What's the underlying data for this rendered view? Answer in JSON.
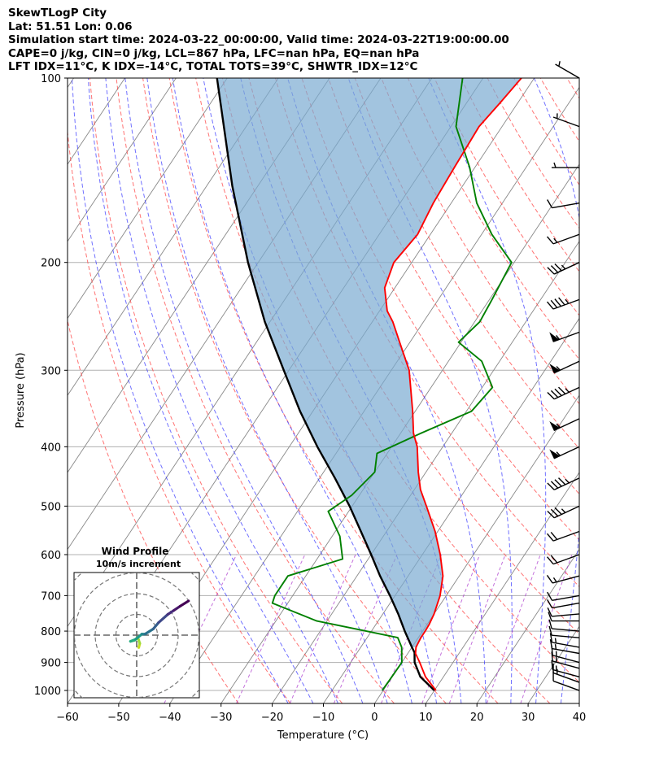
{
  "header": {
    "line1": "SkewTLogP City",
    "line2": "Lat: 51.51   Lon: 0.06",
    "line3": "Simulation start time: 2024-03-22_00:00:00, Valid time: 2024-03-22T19:00:00.00",
    "line4": "CAPE=0 j/kg, CIN=0 j/kg, LCL=867 hPa, LFC=nan hPa, EQ=nan hPa",
    "line5": "LFT IDX=11°C, K IDX=-14°C, TOTAL TOTS=39°C, SHWTR_IDX=12°C"
  },
  "colors": {
    "temperature": "#ff0000",
    "dewpoint": "#008000",
    "parcel": "#000000",
    "cape_fill": "#7aabd2",
    "dry_adiabat": "#ff4444",
    "moist_adiabat": "#3333ff",
    "mixing_ratio": "#aa33cc",
    "isotherm": "#888888",
    "grid": "#b0b0b0"
  },
  "chart_data": {
    "type": "line",
    "title": "",
    "xlabel": "Temperature (°C)",
    "ylabel": "Pressure (hPa)",
    "xlim": [
      -60,
      40
    ],
    "ylim": [
      1050,
      100
    ],
    "yscale": "log",
    "grid": true,
    "x_ticks": [
      -60,
      -50,
      -40,
      -30,
      -20,
      -10,
      0,
      10,
      20,
      30,
      40
    ],
    "x_tick_labels": [
      "−60",
      "−50",
      "−40",
      "−30",
      "−20",
      "−10",
      "0",
      "10",
      "20",
      "30",
      "40"
    ],
    "y_ticks": [
      1000,
      900,
      800,
      700,
      600,
      500,
      400,
      300,
      200,
      100
    ],
    "y_tick_labels": [
      "1000",
      "900",
      "800",
      "700",
      "600",
      "500",
      "400",
      "300",
      "200",
      "100"
    ],
    "series": [
      {
        "key": "temperature",
        "pressure": [
          1000,
          950,
          900,
          870,
          850,
          820,
          800,
          780,
          750,
          700,
          650,
          600,
          550,
          500,
          470,
          440,
          400,
          380,
          350,
          300,
          270,
          250,
          240,
          220,
          200,
          180,
          160,
          140,
          120,
          110,
          100
        ],
        "values": [
          10.3,
          6.5,
          3.5,
          1.5,
          0.8,
          0.5,
          0.5,
          0.4,
          0.0,
          -1.2,
          -3.2,
          -6.5,
          -10.5,
          -15.5,
          -18.8,
          -21.5,
          -25.0,
          -27.5,
          -30.5,
          -36.5,
          -42.0,
          -46.0,
          -48.5,
          -52.0,
          -53.5,
          -52.5,
          -53.5,
          -54.0,
          -54.5,
          -53.5,
          -52.5
        ]
      },
      {
        "key": "dewpoint",
        "pressure": [
          1000,
          960,
          900,
          850,
          820,
          800,
          770,
          720,
          700,
          650,
          610,
          560,
          510,
          480,
          440,
          410,
          380,
          350,
          320,
          290,
          270,
          250,
          230,
          200,
          180,
          160,
          140,
          120,
          100
        ],
        "values": [
          -0.2,
          -0.1,
          0.0,
          -2.0,
          -4.0,
          -11.0,
          -22.0,
          -33.0,
          -33.5,
          -33.5,
          -25.0,
          -28.5,
          -34.0,
          -31.5,
          -30.0,
          -32.0,
          -26.0,
          -19.0,
          -18.0,
          -23.5,
          -30.5,
          -29.0,
          -29.5,
          -30.5,
          -38.0,
          -45.0,
          -51.0,
          -59.0,
          -64.0
        ]
      },
      {
        "key": "parcel",
        "pressure": [
          1000,
          950,
          900,
          867,
          850,
          800,
          750,
          700,
          650,
          600,
          550,
          500,
          450,
          400,
          350,
          300,
          250,
          200,
          150,
          100
        ],
        "values": [
          10.0,
          5.5,
          2.5,
          1.2,
          0.0,
          -3.5,
          -7.0,
          -11.0,
          -15.5,
          -20.0,
          -25.0,
          -30.5,
          -37.0,
          -44.5,
          -52.5,
          -61.0,
          -71.0,
          -82.0,
          -95.0,
          -112.0
        ]
      }
    ],
    "wind_barbs": {
      "pressure": [
        1000,
        970,
        950,
        920,
        900,
        870,
        850,
        820,
        800,
        770,
        750,
        720,
        700,
        650,
        600,
        550,
        500,
        450,
        400,
        360,
        320,
        290,
        260,
        230,
        200,
        180,
        160,
        140,
        120,
        100
      ],
      "direction": [
        290,
        290,
        285,
        285,
        285,
        280,
        280,
        275,
        275,
        270,
        265,
        260,
        260,
        255,
        250,
        250,
        245,
        245,
        245,
        245,
        245,
        245,
        250,
        250,
        245,
        250,
        260,
        270,
        290,
        300
      ],
      "speed": [
        10,
        15,
        15,
        15,
        15,
        15,
        15,
        10,
        10,
        10,
        10,
        10,
        10,
        15,
        20,
        20,
        35,
        45,
        55,
        55,
        45,
        55,
        55,
        45,
        35,
        15,
        10,
        5,
        5,
        5
      ]
    },
    "hodograph": {
      "title": "Wind Profile",
      "subtitle": "10m/s increment",
      "u_ms": [
        1.0,
        1.5,
        0.5,
        -1.0,
        -3.0,
        -0.5,
        2.5,
        4.0,
        8.0,
        10.5,
        15.0,
        18.0,
        21.0,
        25.0
      ],
      "v_ms": [
        -6.0,
        -4.0,
        -1.0,
        -2.5,
        -3.0,
        -2.0,
        0.5,
        0.5,
        3.0,
        6.0,
        10.0,
        12.0,
        14.0,
        16.5
      ]
    }
  }
}
